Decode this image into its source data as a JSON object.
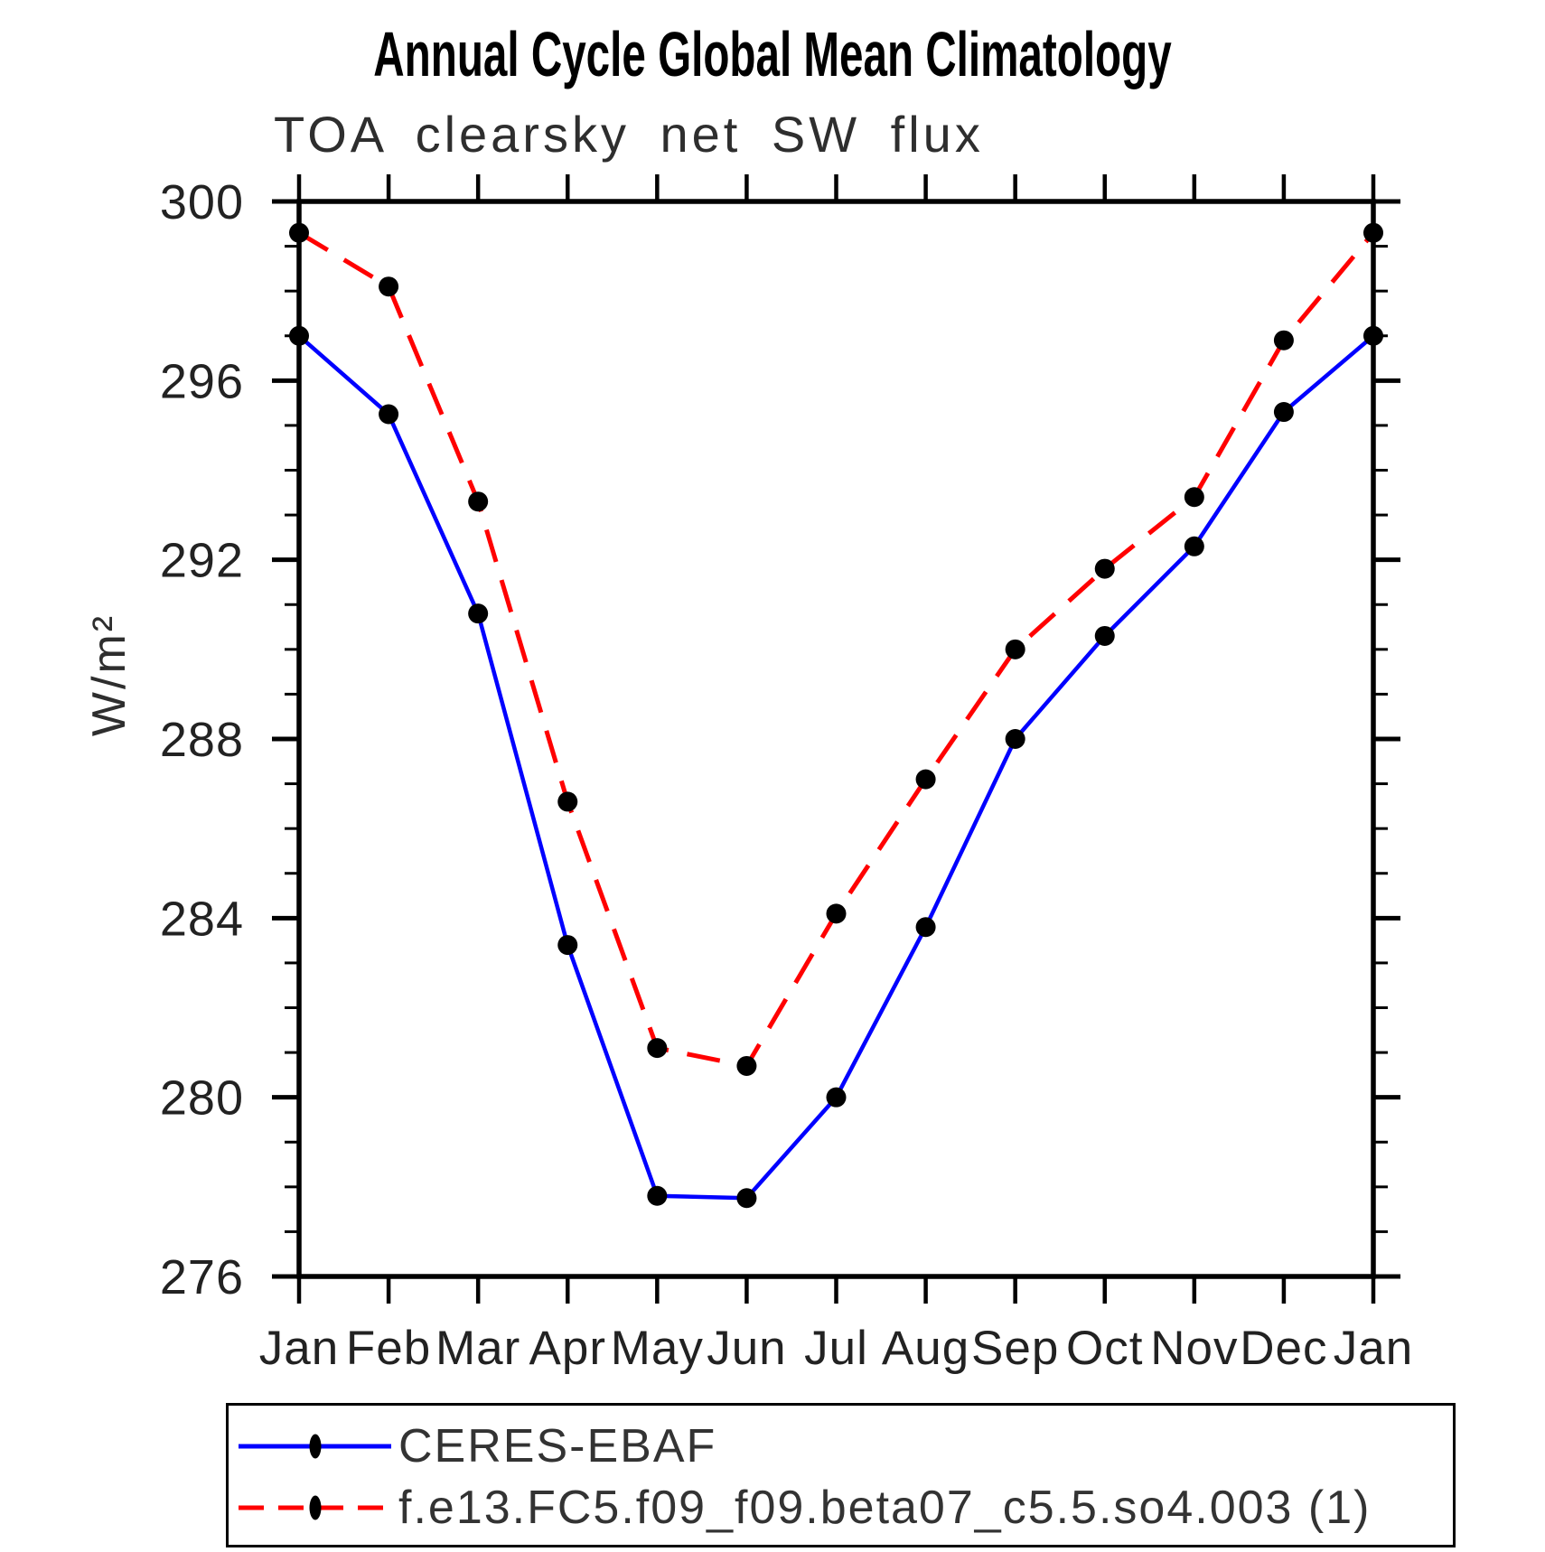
{
  "title": "Annual Cycle Global Mean Climatology",
  "subtitle": "TOA clearsky net SW flux",
  "y_axis_label": "W/m²",
  "legend": {
    "entries": [
      {
        "label": "CERES-EBAF",
        "line_color": "#0000ff",
        "line_style": "solid",
        "marker": "black-dot"
      },
      {
        "label": "f.e13.FC5.f09_f09.beta07_c5.5.so4.003 (1)",
        "line_color": "#ff0000",
        "line_style": "dashed",
        "marker": "black-dot"
      }
    ]
  },
  "chart_data": {
    "type": "line",
    "title": "Annual Cycle Global Mean Climatology",
    "subtitle": "TOA clearsky net SW flux",
    "xlabel": "",
    "ylabel": "W/m²",
    "x_categories": [
      "Jan",
      "Feb",
      "Mar",
      "Apr",
      "May",
      "Jun",
      "Jul",
      "Aug",
      "Sep",
      "Oct",
      "Nov",
      "Dec",
      "Jan"
    ],
    "ylim": [
      276,
      300
    ],
    "y_major_ticks": [
      300,
      296,
      292,
      288,
      284,
      280,
      276
    ],
    "y_minor_tick_step": 1,
    "grid": false,
    "legend_position": "bottom",
    "axis_color": "#000000",
    "marker_color": "#000000",
    "series": [
      {
        "name": "CERES-EBAF",
        "color": "#0000ff",
        "style": "solid",
        "values": [
          297.0,
          295.25,
          290.8,
          283.4,
          277.8,
          277.75,
          280.0,
          283.8,
          288.0,
          290.3,
          292.3,
          295.3,
          297.0
        ]
      },
      {
        "name": "f.e13.FC5.f09_f09.beta07_c5.5.so4.003 (1)",
        "color": "#ff0000",
        "style": "dashed",
        "values": [
          299.3,
          298.1,
          293.3,
          286.6,
          281.1,
          280.7,
          284.1,
          287.1,
          290.0,
          291.8,
          293.4,
          296.9,
          299.3
        ]
      }
    ]
  }
}
